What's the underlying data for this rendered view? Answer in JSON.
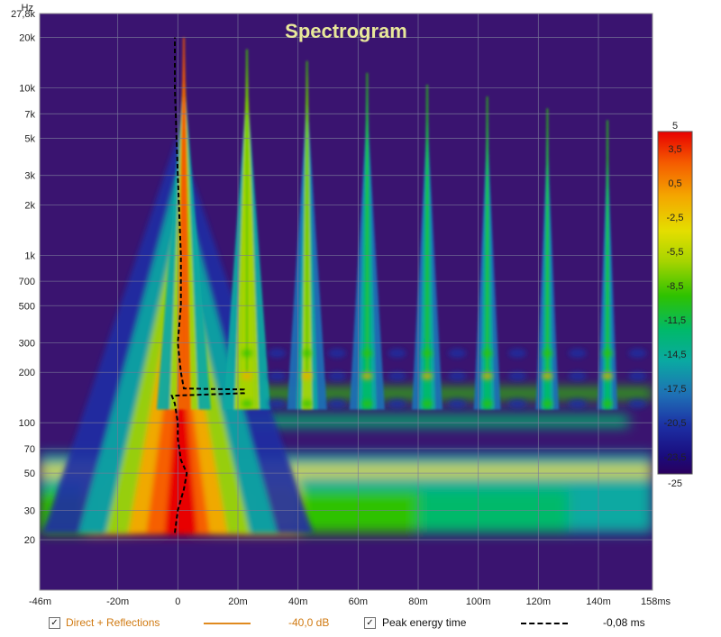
{
  "chart_data": {
    "type": "heatmap",
    "title": "Spectrogram",
    "y_unit": "Hz",
    "x_unit": "ms",
    "y_scale": "log",
    "xlim_ms": [
      -46,
      158
    ],
    "ylim_hz": [
      10,
      27800
    ],
    "x_ticks": [
      {
        "v": -46,
        "label": "-46m"
      },
      {
        "v": -20,
        "label": "-20m"
      },
      {
        "v": 0,
        "label": "0"
      },
      {
        "v": 20,
        "label": "20m"
      },
      {
        "v": 40,
        "label": "40m"
      },
      {
        "v": 60,
        "label": "60m"
      },
      {
        "v": 80,
        "label": "80m"
      },
      {
        "v": 100,
        "label": "100m"
      },
      {
        "v": 120,
        "label": "120m"
      },
      {
        "v": 140,
        "label": "140m"
      },
      {
        "v": 158,
        "label": "158ms"
      }
    ],
    "y_ticks": [
      {
        "v": 27800,
        "label": "27,8k"
      },
      {
        "v": 20000,
        "label": "20k"
      },
      {
        "v": 10000,
        "label": "10k"
      },
      {
        "v": 7000,
        "label": "7k"
      },
      {
        "v": 5000,
        "label": "5k"
      },
      {
        "v": 3000,
        "label": "3k"
      },
      {
        "v": 2000,
        "label": "2k"
      },
      {
        "v": 1000,
        "label": "1k"
      },
      {
        "v": 700,
        "label": "700"
      },
      {
        "v": 500,
        "label": "500"
      },
      {
        "v": 300,
        "label": "300"
      },
      {
        "v": 200,
        "label": "200"
      },
      {
        "v": 100,
        "label": "100"
      },
      {
        "v": 70,
        "label": "70"
      },
      {
        "v": 50,
        "label": "50"
      },
      {
        "v": 30,
        "label": "30"
      },
      {
        "v": 20,
        "label": "20"
      }
    ],
    "colorbar": {
      "min": -25,
      "max": 5,
      "labels": [
        "5",
        "3,5",
        "0,5",
        "-2,5",
        "-5,5",
        "-8,5",
        "-11,5",
        "-14,5",
        "-17,5",
        "-20,5",
        "-23,5",
        "-25"
      ],
      "values": [
        5,
        3.5,
        0.5,
        -2.5,
        -5.5,
        -8.5,
        -11.5,
        -14.5,
        -17.5,
        -20.5,
        -23.5,
        -25
      ]
    },
    "reflection_times_ms": [
      2,
      23,
      43,
      63,
      83,
      103,
      123,
      143
    ],
    "data_lower_freq_hz": 22,
    "peak_energy_time": [
      {
        "f": 22,
        "t": -1
      },
      {
        "f": 30,
        "t": 0
      },
      {
        "f": 40,
        "t": 2
      },
      {
        "f": 50,
        "t": 3
      },
      {
        "f": 60,
        "t": 1
      },
      {
        "f": 80,
        "t": 0
      },
      {
        "f": 100,
        "t": 0
      },
      {
        "f": 130,
        "t": -1
      },
      {
        "f": 145,
        "t": -2
      },
      {
        "f": 150,
        "t": 22
      },
      {
        "f": 158,
        "t": 22
      },
      {
        "f": 160,
        "t": 2
      },
      {
        "f": 200,
        "t": 1
      },
      {
        "f": 300,
        "t": 0
      },
      {
        "f": 500,
        "t": 1
      },
      {
        "f": 1000,
        "t": 1
      },
      {
        "f": 3000,
        "t": 0
      },
      {
        "f": 10000,
        "t": -1
      },
      {
        "f": 20000,
        "t": -1
      }
    ]
  },
  "colors": {
    "background": "#3a1470",
    "scale": [
      "#e80000",
      "#f55a00",
      "#f4a700",
      "#e4de00",
      "#a6d400",
      "#2ec200",
      "#00b96a",
      "#0aa9a2",
      "#1f6fb5",
      "#1c2fa4",
      "#1a0b7c",
      "#2a005d"
    ],
    "grid": "#7a7a9a",
    "title": "#e8e89a",
    "direct_reflections": "#e08a1e",
    "legend_text_orange": "#d07a12"
  },
  "legend": {
    "direct_label": "Direct + Reflections",
    "direct_value": "-40,0 dB",
    "peak_label": "Peak energy time",
    "peak_value": "-0,08 ms"
  }
}
